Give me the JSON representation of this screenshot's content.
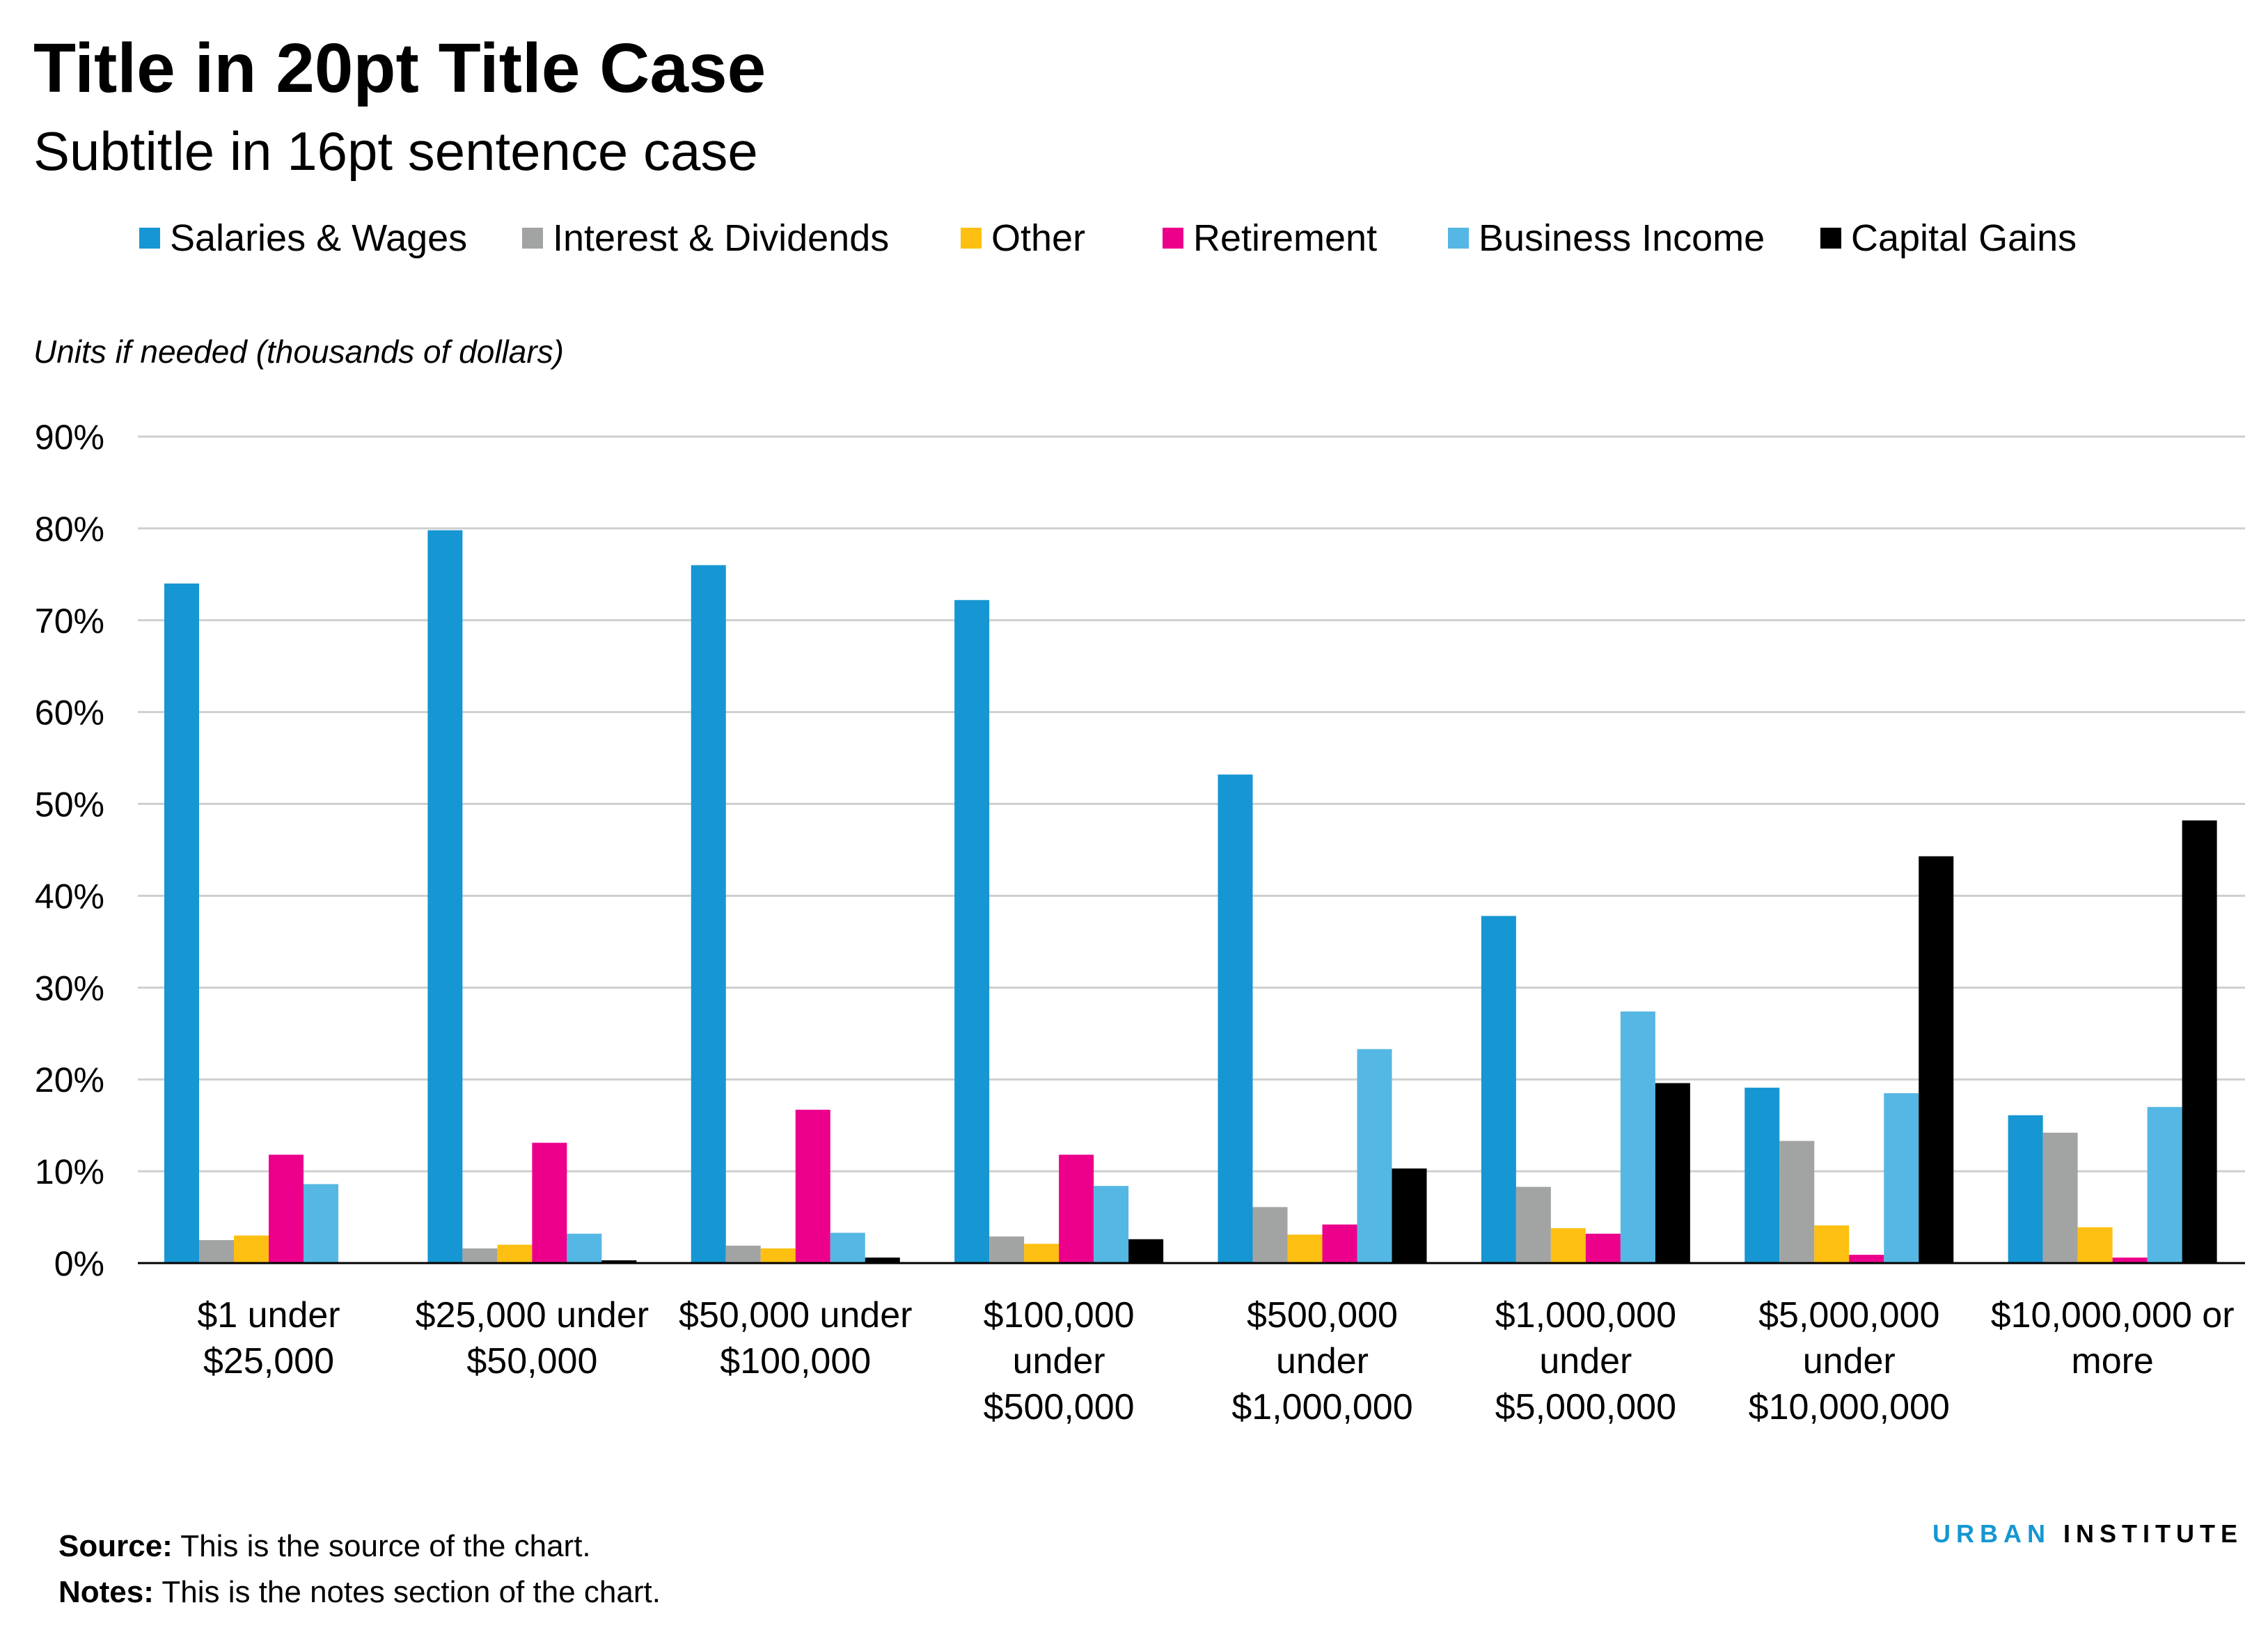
{
  "header": {
    "title": "Title in 20pt Title Case",
    "subtitle": "Subtitle in 16pt sentence case",
    "units": "Units if needed (thousands of dollars)"
  },
  "footer": {
    "source_label": "Source:",
    "source_text": "This is the source of the chart.",
    "notes_label": "Notes:",
    "notes_text": "This is the notes section of the chart.",
    "brand_urban": "URBAN",
    "brand_institute": "INSTITUTE"
  },
  "chart_data": {
    "type": "bar",
    "title": "Title in 20pt Title Case",
    "subtitle": "Subtitle in 16pt sentence case",
    "ylabel": "Units if needed (thousands of dollars)",
    "xlabel": "",
    "ylim": [
      0,
      90
    ],
    "yticks": [
      "0%",
      "10%",
      "20%",
      "30%",
      "40%",
      "50%",
      "60%",
      "70%",
      "80%",
      "90%"
    ],
    "grid": true,
    "legend_position": "top",
    "categories": [
      [
        "$1 under",
        "$25,000"
      ],
      [
        "$25,000 under",
        "$50,000"
      ],
      [
        "$50,000 under",
        "$100,000"
      ],
      [
        "$100,000",
        "under",
        "$500,000"
      ],
      [
        "$500,000",
        "under",
        "$1,000,000"
      ],
      [
        "$1,000,000",
        "under",
        "$5,000,000"
      ],
      [
        "$5,000,000",
        "under",
        "$10,000,000"
      ],
      [
        "$10,000,000 or",
        "more"
      ]
    ],
    "series": [
      {
        "name": "Salaries & Wages",
        "color": "#1696d2",
        "values": [
          74,
          79.8,
          76,
          72.2,
          53.2,
          37.8,
          19.1,
          16.1
        ]
      },
      {
        "name": "Interest & Dividends",
        "color": "#a2a4a3",
        "values": [
          2.5,
          1.6,
          1.9,
          2.9,
          6.1,
          8.3,
          13.3,
          14.2
        ]
      },
      {
        "name": "Other",
        "color": "#fdbf11",
        "values": [
          3.0,
          2.0,
          1.6,
          2.1,
          3.1,
          3.8,
          4.1,
          3.9
        ]
      },
      {
        "name": "Retirement",
        "color": "#ec008b",
        "values": [
          11.8,
          13.1,
          16.7,
          11.8,
          4.2,
          3.2,
          0.9,
          0.6
        ]
      },
      {
        "name": "Business Income",
        "color": "#55b7e3",
        "values": [
          8.6,
          3.2,
          3.3,
          8.4,
          23.3,
          27.4,
          18.5,
          17.0
        ]
      },
      {
        "name": "Capital Gains",
        "color": "#000000",
        "values": [
          0.1,
          0.3,
          0.6,
          2.6,
          10.3,
          19.6,
          44.3,
          48.2
        ]
      }
    ]
  }
}
